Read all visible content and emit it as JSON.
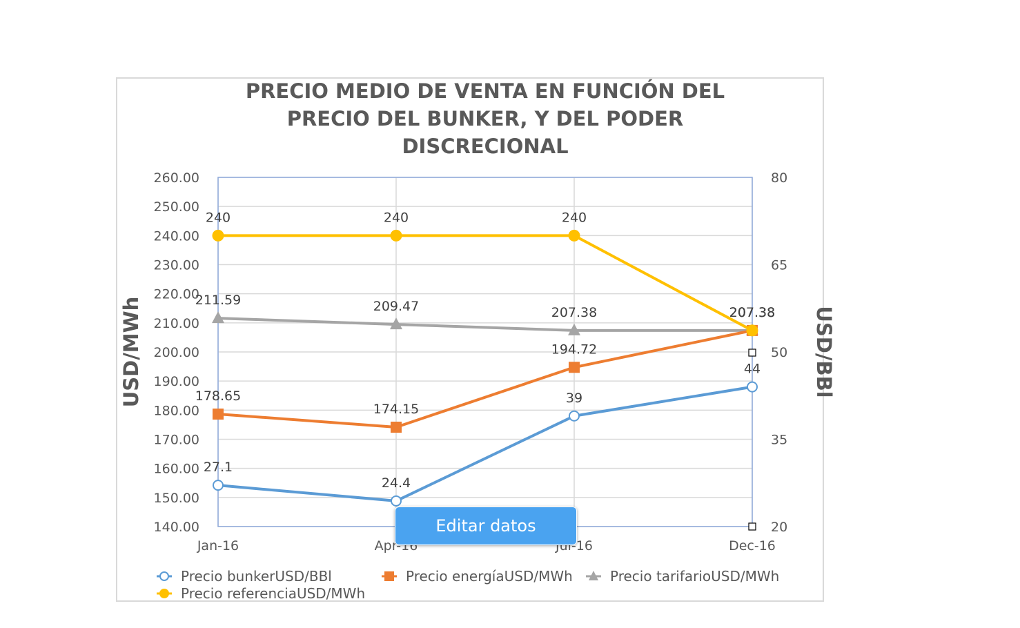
{
  "chart_data": {
    "type": "line",
    "title_lines": [
      "PRECIO MEDIO DE VENTA EN FUNCIÓN DEL",
      "PRECIO DEL BUNKER, Y DEL PODER",
      "DISCRECIONAL"
    ],
    "categories": [
      "Jan-16",
      "Apr-16",
      "Jul-16",
      "Dec-16"
    ],
    "y_left": {
      "label": "USD/MWh",
      "range": [
        140,
        260
      ],
      "ticks": [
        "140.00",
        "150.00",
        "160.00",
        "170.00",
        "180.00",
        "190.00",
        "200.00",
        "210.00",
        "220.00",
        "230.00",
        "240.00",
        "250.00",
        "260.00"
      ]
    },
    "y_right": {
      "label": "USD/BBl",
      "range": [
        20,
        80
      ],
      "ticks": [
        "20",
        "35",
        "50",
        "65",
        "80"
      ]
    },
    "grid": true,
    "legend_position": "bottom",
    "series": [
      {
        "name": "Precio bunkerUSD/BBl",
        "axis": "right",
        "color": "#5b9bd5",
        "marker": "circle-open",
        "values": [
          27.1,
          24.4,
          39,
          44
        ],
        "labels": [
          "27.1",
          "24.4",
          "39",
          "44"
        ]
      },
      {
        "name": "Precio energíaUSD/MWh",
        "axis": "left",
        "color": "#ed7d31",
        "marker": "square",
        "values": [
          178.65,
          174.15,
          194.72,
          207.38
        ],
        "labels": [
          "178.65",
          "174.15",
          "194.72",
          "207.38"
        ]
      },
      {
        "name": "Precio tarifarioUSD/MWh",
        "axis": "left",
        "color": "#a5a5a5",
        "marker": "triangle",
        "values": [
          211.59,
          209.47,
          207.38,
          207.38
        ],
        "labels": [
          "211.59",
          "209.47",
          "207.38",
          "207.38"
        ]
      },
      {
        "name": "Precio referenciaUSD/MWh",
        "axis": "left",
        "color": "#ffc000",
        "marker": "circle",
        "values": [
          240,
          240,
          240,
          207.38
        ],
        "labels": [
          "240",
          "240",
          "240",
          "207.38"
        ]
      }
    ]
  },
  "edit_button": {
    "label": "Editar datos"
  }
}
